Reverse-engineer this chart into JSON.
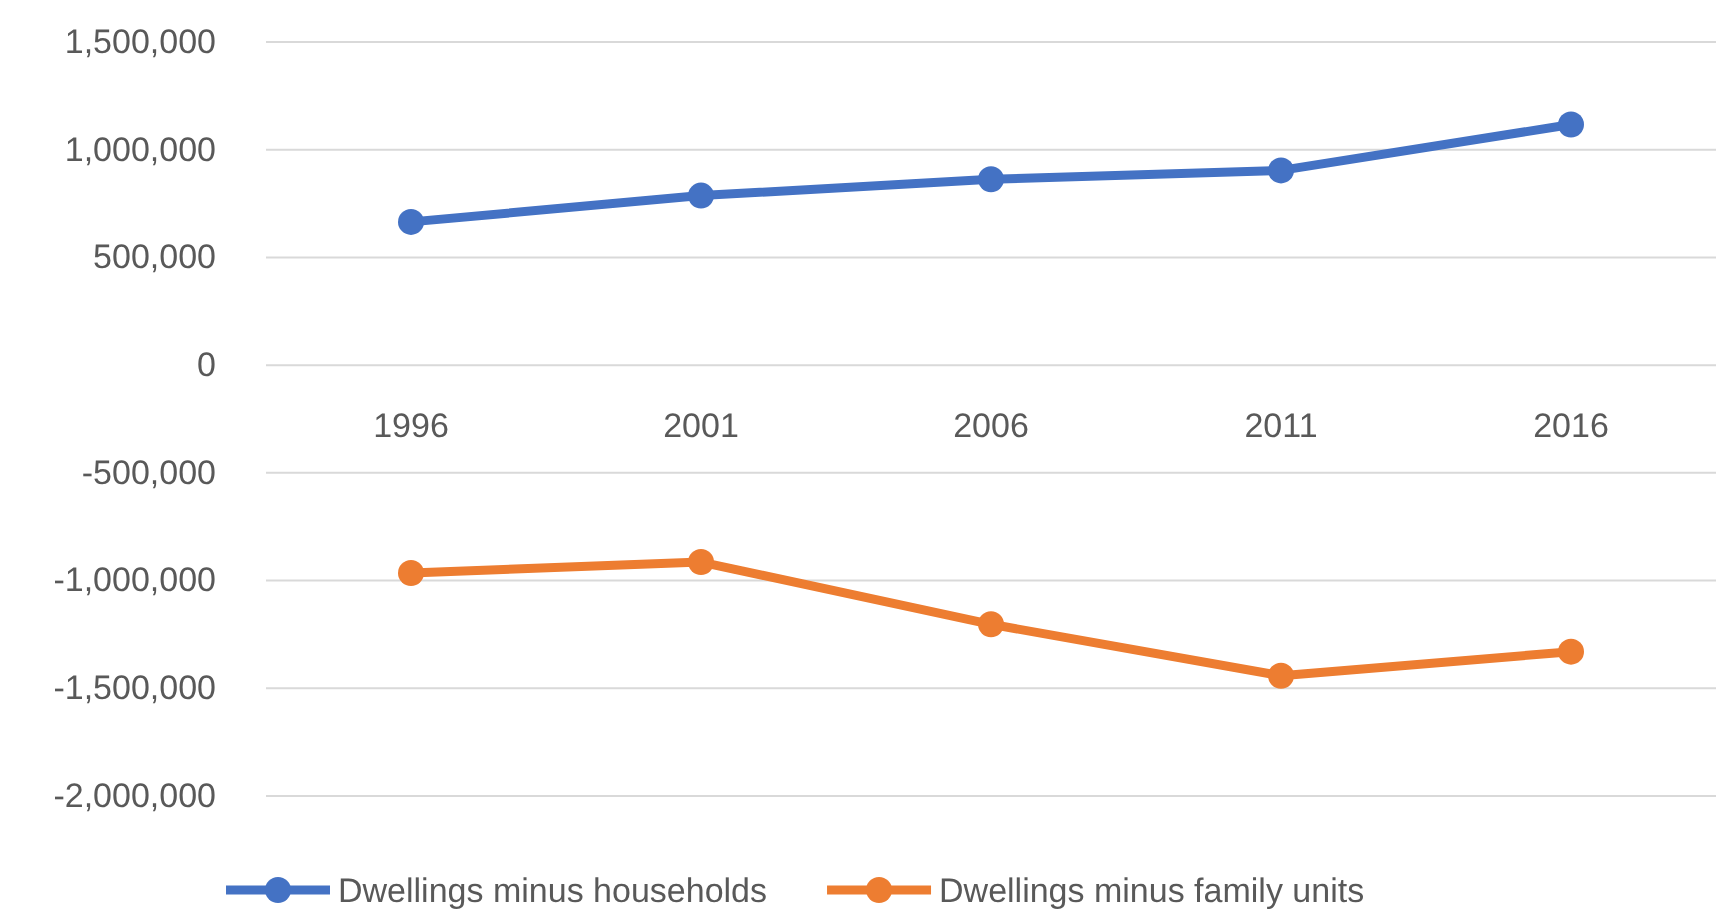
{
  "chart_data": {
    "type": "line",
    "categories": [
      "1996",
      "2001",
      "2006",
      "2011",
      "2016"
    ],
    "series": [
      {
        "name": "Dwellings minus households",
        "color": "#4472c4",
        "values": [
          665000,
          787000,
          863000,
          904000,
          1117000
        ]
      },
      {
        "name": "Dwellings minus family units",
        "color": "#ed7d31",
        "values": [
          -965000,
          -914000,
          -1203000,
          -1442000,
          -1330000
        ]
      }
    ],
    "ylim": [
      -2000000,
      1500000
    ],
    "yticks": [
      {
        "value": -2000000,
        "label": "-2,000,000"
      },
      {
        "value": -1500000,
        "label": "-1,500,000"
      },
      {
        "value": -1000000,
        "label": "-1,000,000"
      },
      {
        "value": -500000,
        "label": "-500,000"
      },
      {
        "value": 0,
        "label": "0"
      },
      {
        "value": 500000,
        "label": "500,000"
      },
      {
        "value": 1000000,
        "label": "1,000,000"
      },
      {
        "value": 1500000,
        "label": "1,500,000"
      }
    ],
    "grid": "y",
    "legend": "bottom",
    "marker": "circle",
    "line_style": "solid"
  }
}
